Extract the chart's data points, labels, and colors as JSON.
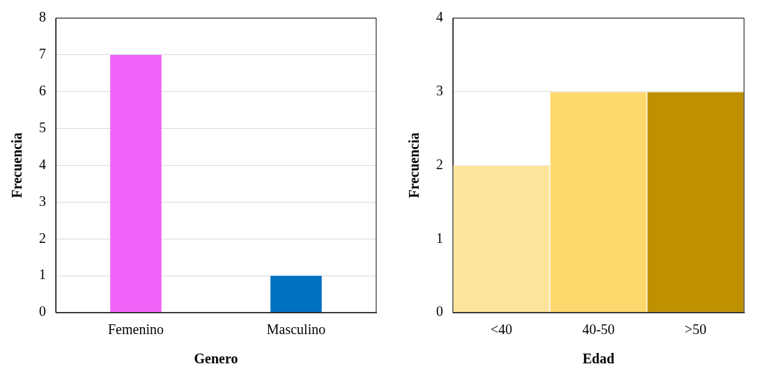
{
  "chart_data": [
    {
      "type": "bar",
      "xlabel": "Genero",
      "ylabel": "Frecuencia",
      "categories": [
        "Femenino",
        "Masculino"
      ],
      "values": [
        7,
        1
      ],
      "colors": [
        "#f062f8",
        "#0070c0"
      ],
      "ylim": [
        0,
        8
      ],
      "yticks": [
        0,
        1,
        2,
        3,
        4,
        5,
        6,
        7,
        8
      ],
      "grid": "y",
      "legend": false
    },
    {
      "type": "bar",
      "xlabel": "Edad",
      "ylabel": "Frecuencia",
      "categories": [
        "<40",
        "40-50",
        ">50"
      ],
      "values": [
        2,
        3,
        3
      ],
      "colors": [
        "#fde49c",
        "#fdd86c",
        "#bf9000"
      ],
      "ylim": [
        0,
        4
      ],
      "yticks": [
        0,
        1,
        2,
        3,
        4
      ],
      "grid": "y",
      "legend": false
    }
  ]
}
